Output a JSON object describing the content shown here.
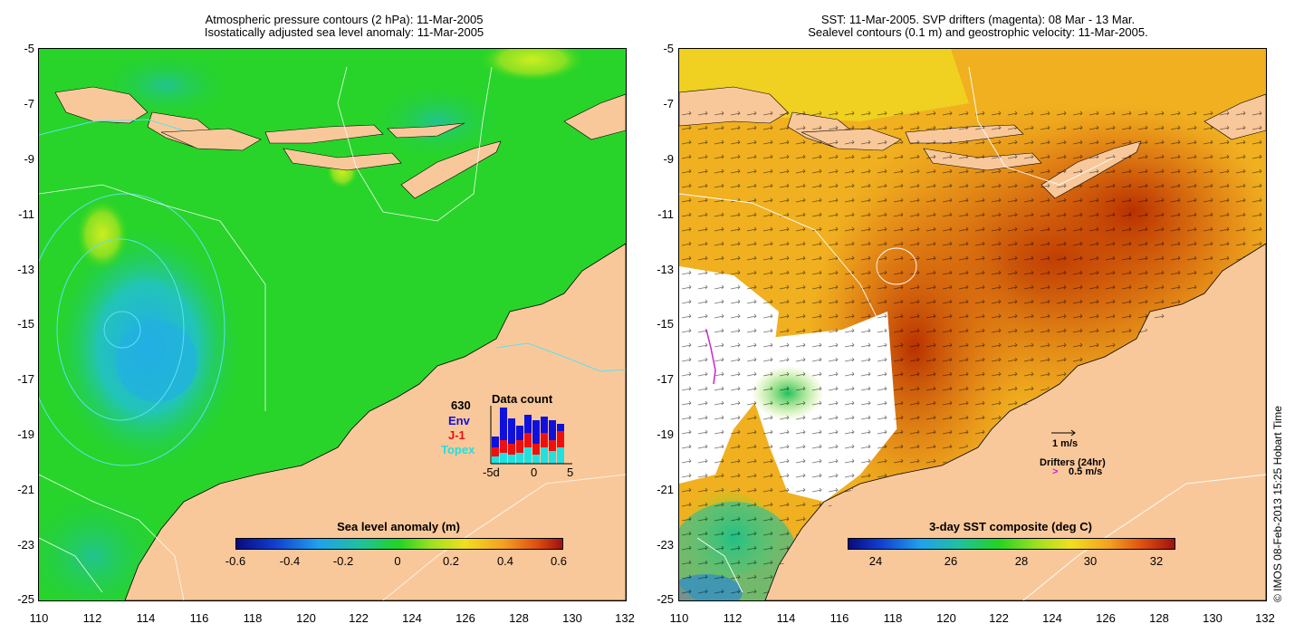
{
  "left_panel": {
    "title_line1": "Atmospheric pressure contours (2 hPa): 11-Mar-2005",
    "title_line2": "Isostatically adjusted sea level anomaly: 11-Mar-2005",
    "y_ticks": [
      "-5",
      "-7",
      "-9",
      "-11",
      "-13",
      "-15",
      "-17",
      "-19",
      "-21",
      "-23",
      "-25"
    ],
    "x_ticks": [
      "110",
      "112",
      "114",
      "116",
      "118",
      "120",
      "122",
      "124",
      "126",
      "128",
      "130",
      "132"
    ],
    "colorbar": {
      "title": "Sea level anomaly (m)",
      "ticks": [
        "-0.6",
        "-0.4",
        "-0.2",
        "0",
        "0.2",
        "0.4",
        "0.6"
      ]
    },
    "data_count": {
      "title": "Data count",
      "total": "630",
      "env": "Env",
      "j1": "J-1",
      "topex": "Topex",
      "x_ticks": [
        "-5d",
        "0",
        "5"
      ]
    }
  },
  "right_panel": {
    "title_line1": "SST: 11-Mar-2005. SVP drifters (magenta): 08 Mar - 13 Mar.",
    "title_line2": "Sealevel contours (0.1 m) and geostrophic velocity: 11-Mar-2005.",
    "y_ticks": [
      "-5",
      "-7",
      "-9",
      "-11",
      "-13",
      "-15",
      "-17",
      "-19",
      "-21",
      "-23",
      "-25"
    ],
    "x_ticks": [
      "110",
      "112",
      "114",
      "116",
      "118",
      "120",
      "122",
      "124",
      "126",
      "128",
      "130",
      "132"
    ],
    "colorbar": {
      "title": "3-day SST composite (deg C)",
      "ticks": [
        "24",
        "26",
        "28",
        "30",
        "32"
      ]
    },
    "velocity_scale": "1 m/s",
    "drifters_label": "Drifters (24hr)",
    "drifters_scale": "0.5 m/s"
  },
  "credit": "© IMOS 08-Feb-2013 15:25 Hobart Time",
  "colors": {
    "land": "#f9c89a",
    "sla_ocean": "#22d422",
    "sst_hot": "#cc4400",
    "env": "#1010dd",
    "j1": "#ee1010",
    "topex": "#20e0e0"
  }
}
